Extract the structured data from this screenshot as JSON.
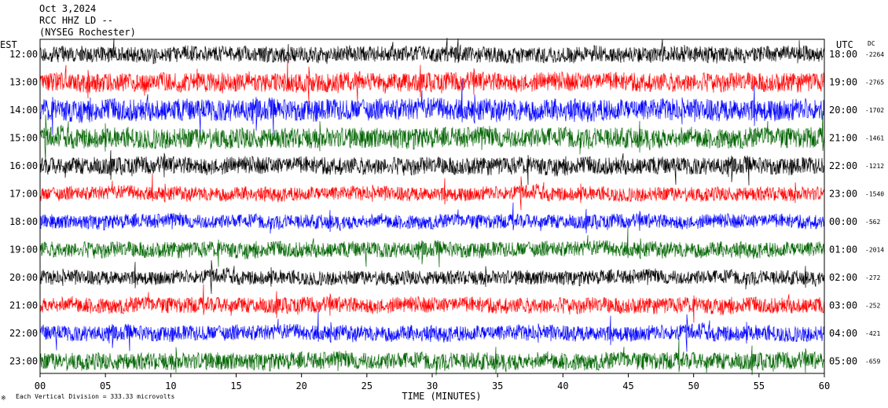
{
  "header": {
    "date": "Oct 3,2024",
    "station": "RCC HHZ LD --",
    "location": "(NYSEG Rochester)"
  },
  "left_axis_title": "EST",
  "right_axis_title": "UTC",
  "dc_title": "DC",
  "footer_note": "Each Vertical Division = 333.33 microvolts",
  "footer_glyph": "※",
  "colors": {
    "black": "#000000",
    "red": "#ff0000",
    "blue": "#0000ff",
    "green": "#006400"
  },
  "chart_data": {
    "type": "line",
    "title": "Oct 3,2024",
    "xlabel": "TIME (MINUTES)",
    "ylabel": "EST",
    "xlim": [
      0,
      60
    ],
    "x_ticks": [
      "00",
      "05",
      "10",
      "15",
      "20",
      "25",
      "30",
      "35",
      "40",
      "45",
      "50",
      "55",
      "60"
    ],
    "rows": [
      {
        "est": "12:00",
        "utc": "18:00",
        "dc": "-2264",
        "color": "black",
        "amp": 10
      },
      {
        "est": "13:00",
        "utc": "19:00",
        "dc": "-2765",
        "color": "red",
        "amp": 12
      },
      {
        "est": "14:00",
        "utc": "20:00",
        "dc": "-1702",
        "color": "blue",
        "amp": 14
      },
      {
        "est": "15:00",
        "utc": "21:00",
        "dc": "-1461",
        "color": "green",
        "amp": 13
      },
      {
        "est": "16:00",
        "utc": "22:00",
        "dc": "-1212",
        "color": "black",
        "amp": 11
      },
      {
        "est": "17:00",
        "utc": "23:00",
        "dc": "-1540",
        "color": "red",
        "amp": 9
      },
      {
        "est": "18:00",
        "utc": "00:00",
        "dc": "-562",
        "color": "blue",
        "amp": 9
      },
      {
        "est": "19:00",
        "utc": "01:00",
        "dc": "-2014",
        "color": "green",
        "amp": 10
      },
      {
        "est": "20:00",
        "utc": "02:00",
        "dc": "-272",
        "color": "black",
        "amp": 9
      },
      {
        "est": "21:00",
        "utc": "03:00",
        "dc": "-252",
        "color": "red",
        "amp": 10
      },
      {
        "est": "22:00",
        "utc": "04:00",
        "dc": "-421",
        "color": "blue",
        "amp": 10
      },
      {
        "est": "23:00",
        "utc": "05:00",
        "dc": "-659",
        "color": "green",
        "amp": 11
      }
    ]
  }
}
